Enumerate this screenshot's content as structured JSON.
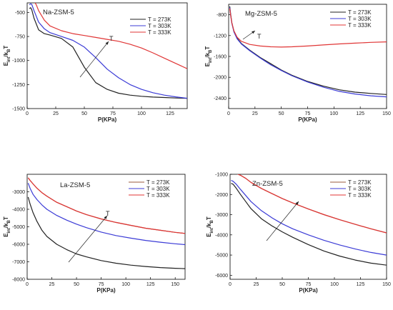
{
  "chart_data": [
    {
      "type": "line",
      "title": "Na-ZSM-5",
      "xlabel": "P(KPa)",
      "ylabel": "E_int/k_B T",
      "xlim": [
        0,
        140
      ],
      "ylim": [
        -1500,
        -400
      ],
      "xticks": [
        0,
        25,
        50,
        75,
        100,
        125
      ],
      "yticks": [
        -500,
        -750,
        -1000,
        -1250,
        -1500
      ],
      "legend_position": "top-right",
      "annotation": "T",
      "series": [
        {
          "name": "T = 273K",
          "color": "#222222",
          "x": [
            2,
            3,
            4,
            6,
            10,
            15,
            20,
            30,
            40,
            50,
            60,
            70,
            80,
            90,
            100,
            110,
            120,
            130,
            140
          ],
          "y": [
            -460,
            -450,
            -470,
            -560,
            -680,
            -720,
            -735,
            -770,
            -860,
            -1070,
            -1230,
            -1300,
            -1340,
            -1360,
            -1372,
            -1380,
            -1385,
            -1390,
            -1393
          ]
        },
        {
          "name": "T = 303K",
          "color": "#3b3bd6",
          "x": [
            2,
            3,
            4,
            6,
            10,
            15,
            20,
            30,
            40,
            50,
            60,
            70,
            80,
            90,
            100,
            110,
            120,
            130,
            140
          ],
          "y": [
            -420,
            -410,
            -415,
            -480,
            -600,
            -670,
            -710,
            -750,
            -790,
            -860,
            -970,
            -1090,
            -1180,
            -1250,
            -1300,
            -1335,
            -1360,
            -1378,
            -1393
          ]
        },
        {
          "name": "T = 333K",
          "color": "#e03535",
          "x": [
            2,
            3,
            4,
            6,
            8,
            10,
            15,
            20,
            30,
            40,
            50,
            60,
            70,
            80,
            90,
            100,
            110,
            120,
            130,
            140
          ],
          "y": [
            -390,
            -380,
            -378,
            -385,
            -420,
            -480,
            -580,
            -640,
            -690,
            -720,
            -740,
            -760,
            -780,
            -800,
            -830,
            -870,
            -920,
            -975,
            -1030,
            -1085
          ]
        }
      ]
    },
    {
      "type": "line",
      "title": "Mg-ZSM-5",
      "xlabel": "P(KPa)",
      "ylabel": "E_int/k_B T",
      "xlim": [
        0,
        150
      ],
      "ylim": [
        -2600,
        -600
      ],
      "xticks": [
        0,
        25,
        50,
        75,
        100,
        125,
        150
      ],
      "yticks": [
        -800,
        -1200,
        -1600,
        -2000,
        -2400
      ],
      "legend_position": "top-right",
      "annotation": "T",
      "series": [
        {
          "name": "T = 273K",
          "color": "#222222",
          "x": [
            1,
            2,
            3,
            5,
            8,
            12,
            20,
            30,
            40,
            50,
            60,
            75,
            90,
            105,
            120,
            135,
            150
          ],
          "y": [
            -640,
            -800,
            -950,
            -1120,
            -1250,
            -1350,
            -1480,
            -1620,
            -1740,
            -1860,
            -1960,
            -2080,
            -2170,
            -2240,
            -2285,
            -2310,
            -2330
          ]
        },
        {
          "name": "T = 303K",
          "color": "#3b3bd6",
          "x": [
            1,
            2,
            3,
            5,
            8,
            12,
            20,
            30,
            40,
            50,
            60,
            75,
            90,
            105,
            120,
            135,
            150
          ],
          "y": [
            -660,
            -820,
            -960,
            -1130,
            -1260,
            -1360,
            -1490,
            -1630,
            -1760,
            -1870,
            -1970,
            -2090,
            -2190,
            -2270,
            -2320,
            -2355,
            -2375
          ]
        },
        {
          "name": "T = 333K",
          "color": "#e03535",
          "x": [
            1,
            2,
            3,
            5,
            8,
            12,
            20,
            30,
            40,
            50,
            60,
            75,
            90,
            105,
            120,
            135,
            150
          ],
          "y": [
            -680,
            -820,
            -950,
            -1110,
            -1230,
            -1310,
            -1370,
            -1400,
            -1415,
            -1420,
            -1415,
            -1400,
            -1380,
            -1360,
            -1345,
            -1330,
            -1320
          ]
        }
      ]
    },
    {
      "type": "line",
      "title": "La-ZSM-5",
      "xlabel": "P(KPa)",
      "ylabel": "E_int/k_B T",
      "xlim": [
        0,
        160
      ],
      "ylim": [
        -8000,
        -2000
      ],
      "xticks": [
        0,
        25,
        50,
        75,
        100,
        125,
        150
      ],
      "yticks": [
        -3000,
        -4000,
        -5000,
        -6000,
        -7000,
        -8000
      ],
      "legend_position": "top-right",
      "annotation": "T",
      "series": [
        {
          "name": "T = 273K",
          "color": "#9a5a3c",
          "x": [
            1,
            3,
            6,
            10,
            15,
            20,
            30,
            40,
            50,
            60,
            75,
            90,
            105,
            120,
            135,
            150,
            160
          ],
          "y": [
            -2200,
            -2350,
            -2550,
            -2800,
            -3050,
            -3250,
            -3600,
            -3850,
            -4100,
            -4300,
            -4550,
            -4750,
            -4920,
            -5080,
            -5200,
            -5320,
            -5380
          ]
        },
        {
          "name": "T = 303K",
          "color": "#3b3bd6",
          "x": [
            1,
            3,
            6,
            10,
            15,
            20,
            30,
            40,
            50,
            60,
            75,
            90,
            105,
            120,
            135,
            150,
            160
          ],
          "y": [
            -2500,
            -2800,
            -3150,
            -3450,
            -3750,
            -4000,
            -4350,
            -4620,
            -4850,
            -5050,
            -5300,
            -5500,
            -5650,
            -5780,
            -5880,
            -5970,
            -6020
          ]
        },
        {
          "name": "T = 333K",
          "color": "#e03535",
          "x": [
            1,
            3,
            6,
            10,
            15,
            20,
            30,
            40,
            50,
            60,
            75,
            90,
            105,
            120,
            135,
            150,
            160
          ],
          "y": [
            -2200,
            -2350,
            -2550,
            -2800,
            -3050,
            -3250,
            -3600,
            -3850,
            -4100,
            -4300,
            -4550,
            -4750,
            -4920,
            -5080,
            -5200,
            -5320,
            -5380
          ]
        },
        {
          "name": "",
          "color": "#222222",
          "x": [
            1,
            3,
            6,
            10,
            15,
            20,
            30,
            40,
            50,
            60,
            75,
            90,
            105,
            120,
            135,
            150,
            160
          ],
          "y": [
            -3300,
            -3700,
            -4200,
            -4700,
            -5200,
            -5550,
            -6000,
            -6300,
            -6550,
            -6720,
            -6930,
            -7080,
            -7190,
            -7270,
            -7330,
            -7370,
            -7390
          ]
        }
      ]
    },
    {
      "type": "line",
      "title": "Zn-ZSM-5",
      "xlabel": "P(KPa)",
      "ylabel": "E_int/k_B T",
      "xlim": [
        0,
        150
      ],
      "ylim": [
        -6200,
        -1000
      ],
      "xticks": [
        0,
        25,
        50,
        75,
        100,
        125,
        150
      ],
      "yticks": [
        -1000,
        -2000,
        -3000,
        -4000,
        -5000,
        -6000
      ],
      "legend_position": "top-right",
      "annotation": "T",
      "series": [
        {
          "name": "T = 273K",
          "color": "#9a5a3c",
          "x": [
            1,
            3,
            6,
            10,
            15,
            20,
            30,
            40,
            50,
            60,
            75,
            90,
            105,
            120,
            135,
            150
          ],
          "y": [
            -950,
            -930,
            -960,
            -1050,
            -1200,
            -1400,
            -1700,
            -1950,
            -2200,
            -2420,
            -2720,
            -3000,
            -3250,
            -3480,
            -3700,
            -3900
          ]
        },
        {
          "name": "T = 303K",
          "color": "#3b3bd6",
          "x": [
            1,
            3,
            6,
            10,
            15,
            20,
            30,
            40,
            50,
            60,
            75,
            90,
            105,
            120,
            135,
            150
          ],
          "y": [
            -1300,
            -1350,
            -1500,
            -1750,
            -2050,
            -2350,
            -2800,
            -3150,
            -3450,
            -3700,
            -4000,
            -4270,
            -4500,
            -4700,
            -4870,
            -5000
          ]
        },
        {
          "name": "T = 333K",
          "color": "#e03535",
          "x": [
            1,
            3,
            6,
            10,
            15,
            20,
            30,
            40,
            50,
            60,
            75,
            90,
            105,
            120,
            135,
            150
          ],
          "y": [
            -950,
            -930,
            -960,
            -1050,
            -1200,
            -1400,
            -1700,
            -1950,
            -2200,
            -2420,
            -2720,
            -3000,
            -3250,
            -3480,
            -3700,
            -3900
          ]
        },
        {
          "name": "",
          "color": "#222222",
          "x": [
            1,
            3,
            6,
            10,
            15,
            20,
            30,
            40,
            50,
            60,
            75,
            90,
            105,
            120,
            135,
            150
          ],
          "y": [
            -1450,
            -1500,
            -1700,
            -2000,
            -2350,
            -2700,
            -3200,
            -3550,
            -3850,
            -4120,
            -4480,
            -4800,
            -5050,
            -5250,
            -5400,
            -5500
          ]
        }
      ]
    }
  ]
}
